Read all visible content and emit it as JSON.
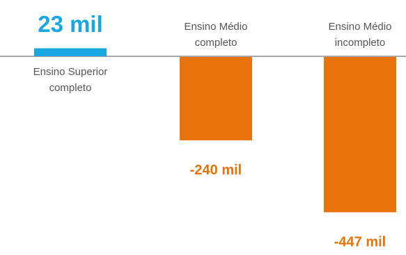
{
  "chart_data": {
    "type": "bar",
    "categories": [
      [
        "Ensino Superior",
        "completo"
      ],
      [
        "Ensino Médio",
        "completo"
      ],
      [
        "Ensino Médio",
        "incompleto"
      ]
    ],
    "values": [
      23,
      -240,
      -447
    ],
    "value_labels": [
      "23 mil",
      "-240 mil",
      "-447 mil"
    ],
    "unit": "mil",
    "positive_color": "#1aa6e0",
    "negative_color": "#e8720c",
    "baseline_color": "#8a8a8a",
    "category_label_color": "#555555",
    "grid": false,
    "legend": false
  }
}
